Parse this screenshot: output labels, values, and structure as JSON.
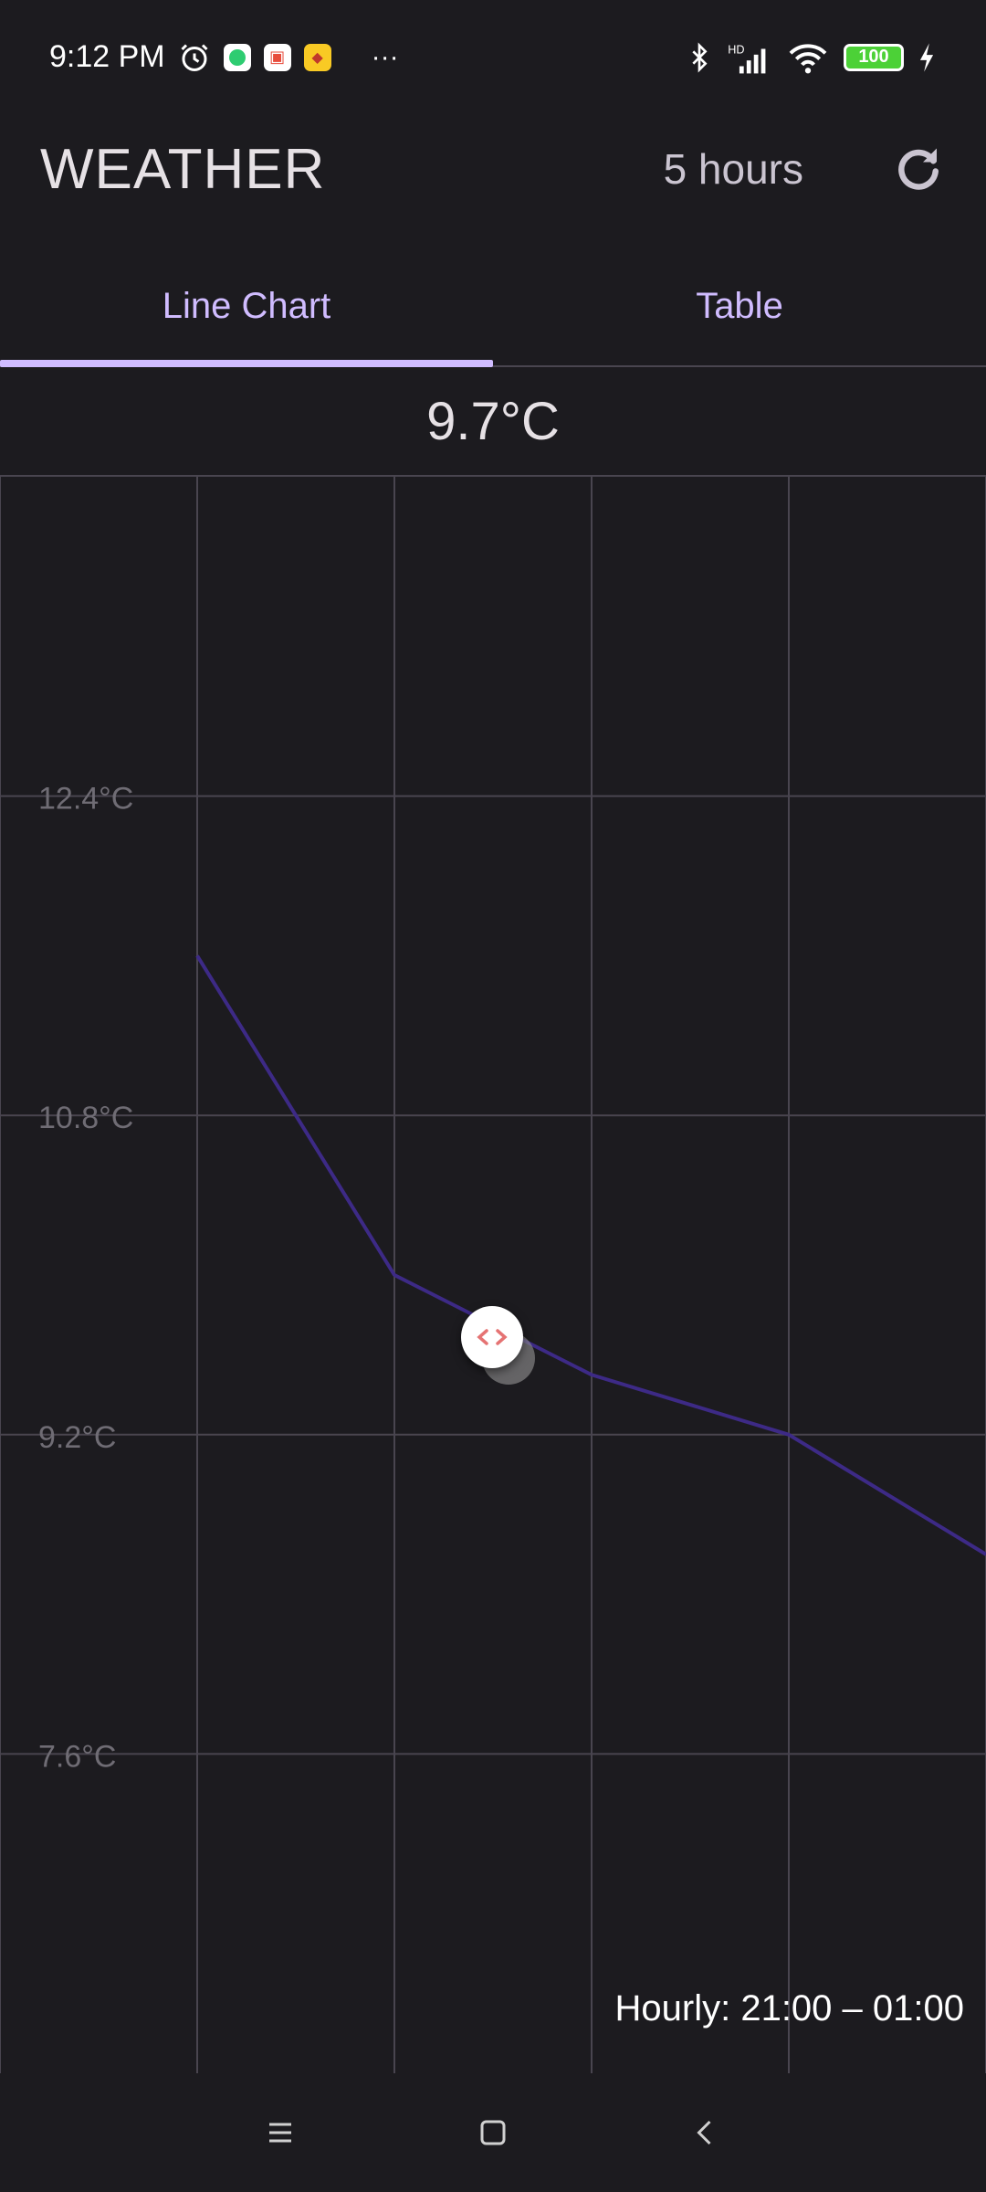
{
  "status_bar": {
    "time": "9:12 PM",
    "more": "···",
    "battery": "100",
    "icons": [
      "alarm-icon",
      "app-icon-green",
      "app-icon-cart",
      "app-icon-yellow",
      "bluetooth-icon",
      "signal-icon",
      "wifi-icon",
      "charging-icon"
    ]
  },
  "app_bar": {
    "title": "WEATHER",
    "period": "5 hours",
    "refresh_icon": "refresh-icon"
  },
  "tabs": [
    {
      "label": "Line Chart",
      "active": true
    },
    {
      "label": "Table",
      "active": false
    }
  ],
  "current_value": "9.7°C",
  "chart_data": {
    "type": "line",
    "y_tick_labels": [
      "12.4°C",
      "10.8°C",
      "9.2°C",
      "7.6°C"
    ],
    "y_ticks": [
      12.4,
      10.8,
      9.2,
      7.6
    ],
    "ylim": [
      6.0,
      14.0
    ],
    "x": [
      21.0,
      22.0,
      23.0,
      24.0,
      25.0
    ],
    "xlim": [
      20.0,
      25.0
    ],
    "series": [
      {
        "values": [
          11.6,
          10.0,
          9.5,
          9.2,
          8.6
        ],
        "color": "#3d2a86"
      }
    ],
    "grid": true,
    "range_label": "Hourly: 21:00 – 01:00"
  },
  "colors": {
    "background": "#1c1b1f",
    "accent": "#d0bcff",
    "grid": "#49454f",
    "line": "#3d2a86"
  }
}
